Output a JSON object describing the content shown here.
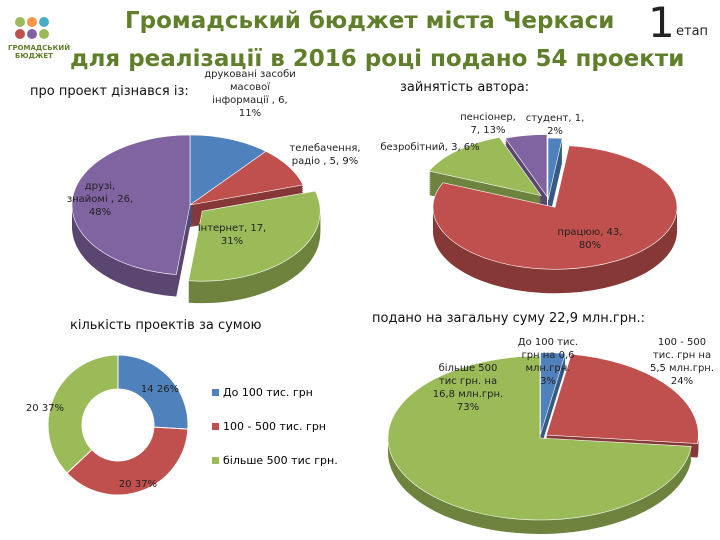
{
  "header": {
    "logo": "ГРОМАДСЬКИЙ БЮДЖЕТ",
    "title": "Громадський бюджет міста Черкаси",
    "stage_number": "1",
    "stage_word": "етап",
    "subtitle": "для реалізації в 2016 році подано 54 проекти"
  },
  "chart_data": [
    {
      "type": "pie",
      "title": "про проект дізнався із:",
      "values": [
        6,
        5,
        17,
        26
      ],
      "value_labels": [
        "друковані засоби масової інформації , 6, 11%",
        "телебачення, радіо , 5, 9%",
        "Інтернет, 17, 31%",
        "друзі, знайомі , 26, 48%"
      ],
      "colors": [
        "#4f81bd",
        "#c0504d",
        "#9bbb59",
        "#8064a2"
      ]
    },
    {
      "type": "pie",
      "title": "зайнятість автора:",
      "values": [
        1,
        43,
        7,
        3
      ],
      "value_labels": [
        "студент, 1, 2%",
        "працюю, 43, 80%",
        "пенсіонер, 7, 13%",
        "безробітний, 3, 6%"
      ],
      "colors": [
        "#4f81bd",
        "#c0504d",
        "#9bbb59",
        "#8064a2"
      ]
    },
    {
      "type": "doughnut",
      "title": "кількість проектів за сумою",
      "categories": [
        "До 100 тис. грн",
        "100 - 500 тис. грн",
        "більше 500 тис грн."
      ],
      "values": [
        14,
        20,
        20
      ],
      "value_labels": [
        "14 26%",
        "20 37%",
        "20 37%"
      ],
      "colors": [
        "#4f81bd",
        "#c0504d",
        "#9bbb59"
      ]
    },
    {
      "type": "pie",
      "title": "подано на загальну суму 22,9 млн.грн.:",
      "values": [
        0.6,
        5.5,
        16.8
      ],
      "value_labels": [
        "До 100 тис. грн на 0,6 млн.грн. 3%",
        "100 - 500 тис. грн на 5,5 млн.грн. 24%",
        "більше 500 тис грн. на 16,8 млн.грн. 73%"
      ],
      "colors": [
        "#4f81bd",
        "#c0504d",
        "#9bbb59"
      ]
    }
  ]
}
